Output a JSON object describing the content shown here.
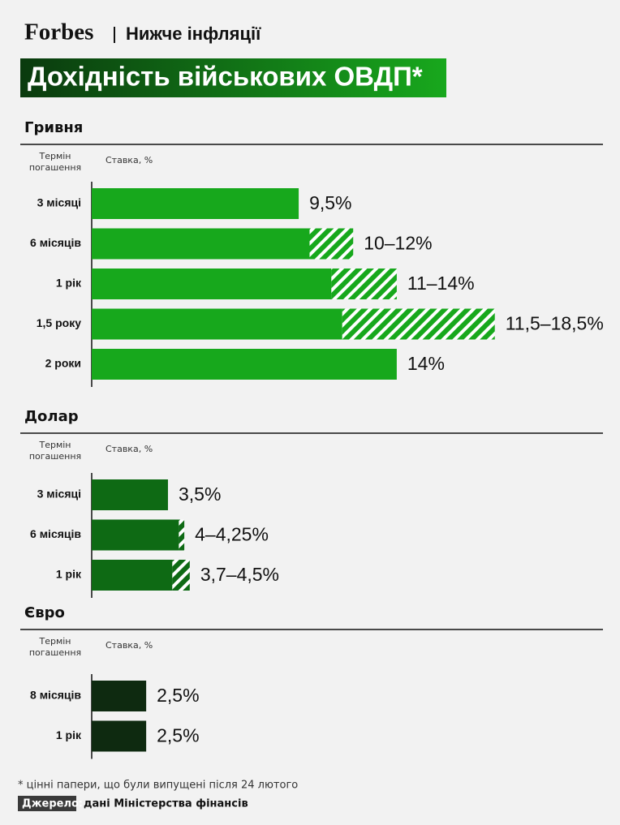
{
  "header": {
    "brand": "Forbes",
    "section": "Нижче інфляції"
  },
  "title": "Дохідність військових ОВДП*",
  "chart_data": [
    {
      "type": "range-bar",
      "title": "Гривня",
      "category_header": [
        "Термін",
        "погашення"
      ],
      "value_header": "Ставка, %",
      "categories": [
        "3 місяці",
        "6 місяців",
        "1 рік",
        "1,5 року",
        "2 роки"
      ],
      "values": [
        9.5,
        10,
        11,
        11.5,
        14
      ],
      "values_high": [
        null,
        12,
        14,
        18.5,
        null
      ],
      "value_labels": [
        "9,5%",
        "10–12%",
        "11–14%",
        "11,5–18,5%",
        "14%"
      ],
      "color": "#17a81c"
    },
    {
      "type": "range-bar",
      "title": "Долар",
      "category_header": [
        "Термін",
        "погашення"
      ],
      "value_header": "Ставка, %",
      "categories": [
        "3 місяці",
        "6 місяців",
        "1 рік"
      ],
      "values": [
        3.5,
        4,
        3.7
      ],
      "values_high": [
        null,
        4.25,
        4.5
      ],
      "value_labels": [
        "3,5%",
        "4–4,25%",
        "3,7–4,5%"
      ],
      "color": "#0e6a14"
    },
    {
      "type": "range-bar",
      "title": "Євро",
      "category_header": [
        "Термін",
        "погашення"
      ],
      "value_header": "Ставка, %",
      "categories": [
        "8 місяців",
        "1 рік"
      ],
      "values": [
        2.5,
        2.5
      ],
      "values_high": [
        null,
        null
      ],
      "value_labels": [
        "2,5%",
        "2,5%"
      ],
      "color": "#0e2a10"
    }
  ],
  "footer": {
    "note": "* цінні папери, що були випущені після 24 лютого",
    "source_label": "Джерело:",
    "source": "дані Міністерства фінансів"
  }
}
